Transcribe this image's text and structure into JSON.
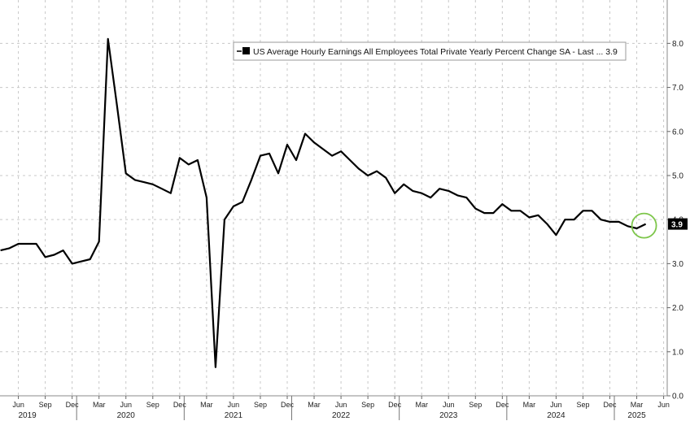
{
  "chart_data": {
    "type": "line",
    "series": [
      {
        "name": "US Average Hourly Earnings All Employees Total Private Yearly Percent Change SA - Last ... 3.9",
        "last_value_label": "3.9",
        "color": "#000000",
        "x": [
          "2019-04",
          "2019-05",
          "2019-06",
          "2019-07",
          "2019-08",
          "2019-09",
          "2019-10",
          "2019-11",
          "2019-12",
          "2020-01",
          "2020-02",
          "2020-03",
          "2020-04",
          "2020-05",
          "2020-06",
          "2020-07",
          "2020-08",
          "2020-09",
          "2020-10",
          "2020-11",
          "2020-12",
          "2021-01",
          "2021-02",
          "2021-03",
          "2021-04",
          "2021-05",
          "2021-06",
          "2021-07",
          "2021-08",
          "2021-09",
          "2021-10",
          "2021-11",
          "2021-12",
          "2022-01",
          "2022-02",
          "2022-03",
          "2022-04",
          "2022-05",
          "2022-06",
          "2022-07",
          "2022-08",
          "2022-09",
          "2022-10",
          "2022-11",
          "2022-12",
          "2023-01",
          "2023-02",
          "2023-03",
          "2023-04",
          "2023-05",
          "2023-06",
          "2023-07",
          "2023-08",
          "2023-09",
          "2023-10",
          "2023-11",
          "2023-12",
          "2024-01",
          "2024-02",
          "2024-03",
          "2024-04",
          "2024-05",
          "2024-06",
          "2024-07",
          "2024-08",
          "2024-09",
          "2024-10",
          "2024-11",
          "2024-12",
          "2025-01",
          "2025-02",
          "2025-03",
          "2025-04"
        ],
        "values": [
          3.3,
          3.35,
          3.45,
          3.45,
          3.45,
          3.15,
          3.2,
          3.3,
          3.0,
          3.05,
          3.1,
          3.5,
          8.1,
          6.6,
          5.05,
          4.9,
          4.85,
          4.8,
          4.7,
          4.6,
          5.4,
          5.25,
          5.35,
          4.5,
          0.65,
          4.0,
          4.3,
          4.4,
          4.9,
          5.45,
          5.5,
          5.05,
          5.7,
          5.35,
          5.95,
          5.75,
          5.6,
          5.45,
          5.55,
          5.35,
          5.15,
          5.0,
          5.1,
          4.95,
          4.6,
          4.8,
          4.65,
          4.6,
          4.5,
          4.7,
          4.65,
          4.55,
          4.5,
          4.25,
          4.15,
          4.15,
          4.35,
          4.2,
          4.2,
          4.05,
          4.1,
          3.9,
          3.65,
          4.0,
          4.0,
          4.2,
          4.2,
          4.0,
          3.95,
          3.95,
          3.85,
          3.8,
          3.9
        ]
      }
    ],
    "x_range": [
      "2019-04",
      "2025-06"
    ],
    "ylim": [
      0,
      8.8
    ],
    "yticks": [
      "0.0",
      "1.0",
      "2.0",
      "3.0",
      "4.0",
      "5.0",
      "6.0",
      "7.0",
      "8.0"
    ],
    "xticks": [
      {
        "date": "2019-06",
        "label": "Jun"
      },
      {
        "date": "2019-09",
        "label": "Sep"
      },
      {
        "date": "2019-12",
        "label": "Dec"
      },
      {
        "date": "2020-03",
        "label": "Mar"
      },
      {
        "date": "2020-06",
        "label": "Jun"
      },
      {
        "date": "2020-09",
        "label": "Sep"
      },
      {
        "date": "2020-12",
        "label": "Dec"
      },
      {
        "date": "2021-03",
        "label": "Mar"
      },
      {
        "date": "2021-06",
        "label": "Jun"
      },
      {
        "date": "2021-09",
        "label": "Sep"
      },
      {
        "date": "2021-12",
        "label": "Dec"
      },
      {
        "date": "2022-03",
        "label": "Mar"
      },
      {
        "date": "2022-06",
        "label": "Jun"
      },
      {
        "date": "2022-09",
        "label": "Sep"
      },
      {
        "date": "2022-12",
        "label": "Dec"
      },
      {
        "date": "2023-03",
        "label": "Mar"
      },
      {
        "date": "2023-06",
        "label": "Jun"
      },
      {
        "date": "2023-09",
        "label": "Sep"
      },
      {
        "date": "2023-12",
        "label": "Dec"
      },
      {
        "date": "2024-03",
        "label": "Mar"
      },
      {
        "date": "2024-06",
        "label": "Jun"
      },
      {
        "date": "2024-09",
        "label": "Sep"
      },
      {
        "date": "2024-12",
        "label": "Dec"
      },
      {
        "date": "2025-03",
        "label": "Mar"
      },
      {
        "date": "2025-06",
        "label": "Jun"
      }
    ],
    "year_labels": [
      {
        "label": "2019",
        "at": "2019-07"
      },
      {
        "label": "2020",
        "at": "2020-06"
      },
      {
        "label": "2021",
        "at": "2021-06"
      },
      {
        "label": "2022",
        "at": "2022-06"
      },
      {
        "label": "2023",
        "at": "2023-06"
      },
      {
        "label": "2024",
        "at": "2024-06"
      },
      {
        "label": "2025",
        "at": "2025-03"
      }
    ],
    "year_dividers": [
      "2020-01",
      "2021-01",
      "2022-01",
      "2023-01",
      "2024-01",
      "2025-01"
    ],
    "grid": true,
    "legend_position": "top-right",
    "last_value_color": "#000000",
    "highlight": {
      "shape": "circle",
      "color": "#7dc64a",
      "at": "2025-04",
      "value": 3.9
    }
  }
}
